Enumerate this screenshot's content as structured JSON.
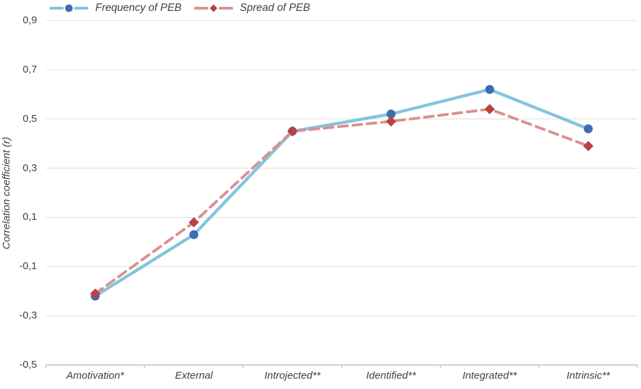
{
  "figure": {
    "background": "#FFFFFF"
  },
  "chart_data": {
    "type": "line",
    "title": "",
    "categories": [
      "Amotivation*",
      "External",
      "Introjected**",
      "Identified**",
      "Integrated**",
      "Intrinsic**"
    ],
    "series": [
      {
        "name": "Frequency of PEB",
        "values": [
          -0.22,
          0.03,
          0.45,
          0.52,
          0.62,
          0.46
        ],
        "line_color": "#85C4DC",
        "marker_color": "#3E6CB2",
        "marker": "circle",
        "line_style": "solid"
      },
      {
        "name": "Spread of PEB",
        "values": [
          -0.21,
          0.08,
          0.45,
          0.49,
          0.54,
          0.39
        ],
        "line_color": "#D8918F",
        "marker_color": "#B94341",
        "marker": "diamond",
        "line_style": "dashed"
      }
    ],
    "xlabel": "",
    "ylabel": "Correlation coefficient (r)",
    "ylim": [
      -0.5,
      0.9
    ],
    "ytick_step": 0.2,
    "ytick_labels": [
      "0,9",
      "0,7",
      "0,5",
      "0,3",
      "0,1",
      "-0,1",
      "-0,3",
      "-0,5"
    ],
    "grid": true,
    "legend_position": "top",
    "colors": {
      "gridline": "#E0E0E0",
      "axis_line": "#BFBFBF",
      "text": "#404040"
    }
  }
}
